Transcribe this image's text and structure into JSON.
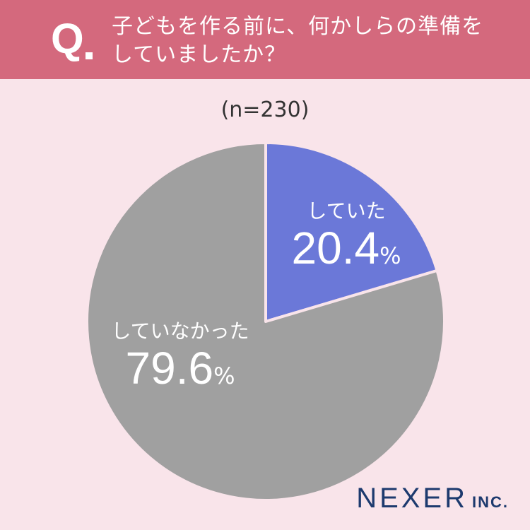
{
  "question": {
    "mark": "Q",
    "text_line1": "子どもを作る前に、何かしらの準備を",
    "text_line2": "していましたか？"
  },
  "sample_size": "(n=230)",
  "chart_data": {
    "type": "pie",
    "categories": [
      "していた",
      "していなかった"
    ],
    "values": [
      20.4,
      79.6
    ],
    "value_labels": [
      "20.4",
      "79.6"
    ],
    "unit": "%",
    "colors": [
      "#6b78d8",
      "#a0a0a0"
    ],
    "start_angle": "12 o'clock",
    "direction": "clockwise",
    "legend": "none"
  },
  "logo": {
    "main": "NEXER",
    "sub": "INC."
  },
  "colors": {
    "background": "#f9e4ea",
    "header": "#d4697d",
    "logo": "#1d3a6e",
    "slice_border": "#f9e4ea"
  }
}
